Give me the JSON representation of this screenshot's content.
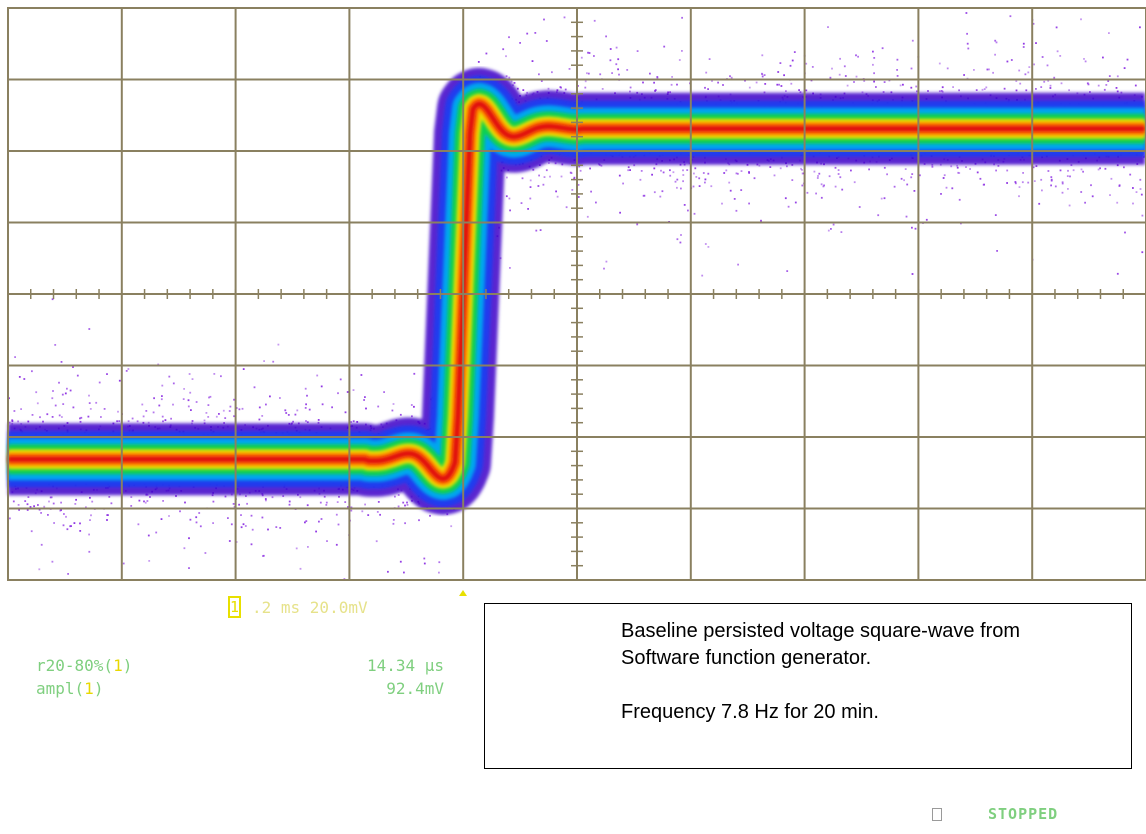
{
  "scope": {
    "channel_marker": "1",
    "timebase": ".2 ms 20.0mV",
    "measurements": [
      {
        "name_prefix": "r20-80%(",
        "channel": "1",
        "name_suffix": ")",
        "value": "14.34 µs"
      },
      {
        "name_prefix": "ampl(",
        "channel": "1",
        "name_suffix": ")",
        "value": "92.4mV"
      }
    ],
    "run_state": "STOPPED"
  },
  "note": {
    "line1": "Baseline persisted voltage square-wave from",
    "line2": "Software function generator.",
    "line3": "Frequency 7.8 Hz for 20 min."
  },
  "colors": {
    "grid": "#8a8060",
    "scatter": "#8a2be2",
    "readout_yellow": "#e6e28a",
    "readout_green": "#7fcf7f"
  },
  "chart_data": {
    "type": "line",
    "title": "",
    "xlabel": "",
    "ylabel": "",
    "grid": true,
    "x_divisions": 10,
    "y_divisions": 8,
    "time_per_div_ms": 0.2,
    "volts_per_div_mV": 20.0,
    "series": [
      {
        "low_mV": -46.2,
        "high_mV": 46.2,
        "rise_time_20_80_us": 14.34,
        "edge_ms": 0.8,
        "persistence": true
      }
    ]
  }
}
